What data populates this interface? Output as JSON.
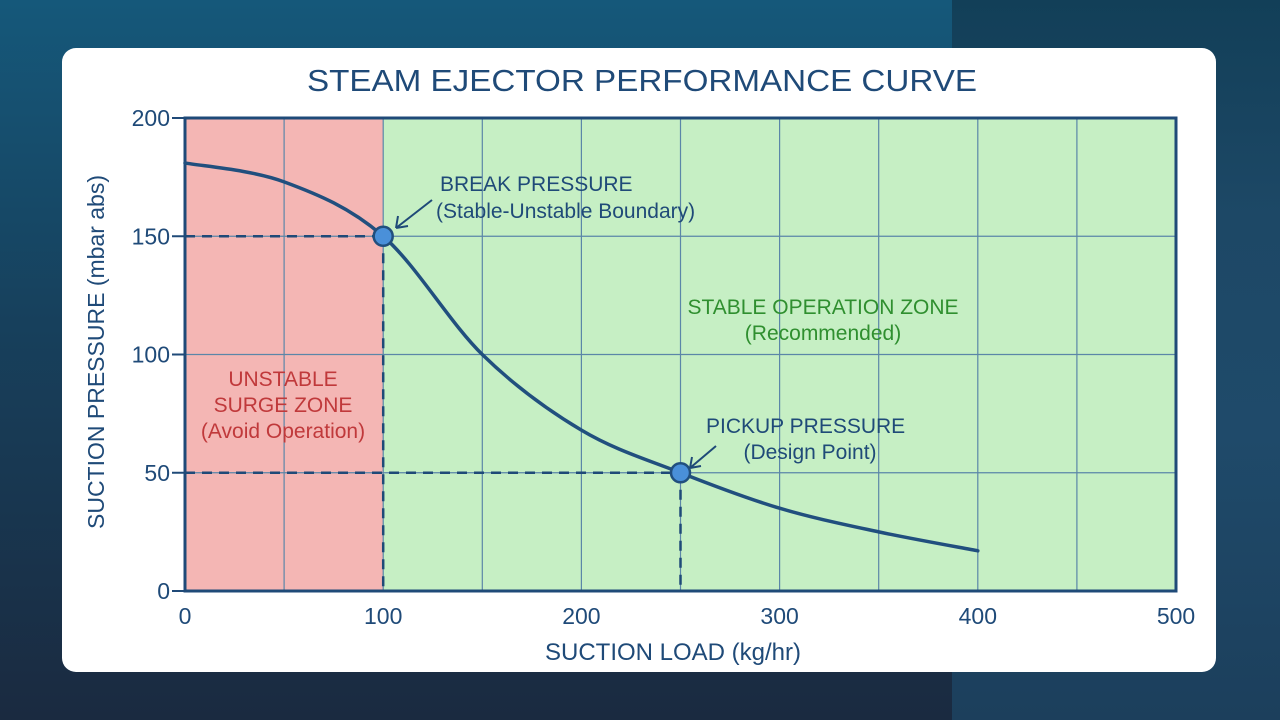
{
  "chart_data": {
    "type": "line",
    "title": "STEAM EJECTOR PERFORMANCE CURVE",
    "xlabel": "SUCTION LOAD (kg/hr)",
    "ylabel": "SUCTION PRESSURE (mbar abs)",
    "xlim": [
      0,
      500
    ],
    "ylim": [
      0,
      200
    ],
    "xticks": [
      0,
      100,
      200,
      300,
      400,
      500
    ],
    "yticks": [
      0,
      50,
      100,
      150,
      200
    ],
    "xtick_labels": [
      "0",
      "100",
      "200",
      "300",
      "400",
      "500"
    ],
    "ytick_labels": [
      "0",
      "50",
      "100",
      "150",
      "200"
    ],
    "grid": true,
    "grid_x_step": 50,
    "grid_y_step": 50,
    "series": [
      {
        "x": [
          0,
          50,
          100,
          150,
          200,
          250,
          300,
          350,
          400
        ],
        "y": [
          181,
          173,
          150,
          100,
          68,
          50,
          35,
          25,
          17
        ]
      }
    ],
    "zones": [
      {
        "label": [
          "UNSTABLE",
          "SURGE ZONE",
          "(Avoid Operation)"
        ],
        "x_range": [
          0,
          100
        ],
        "color": "#f4b6b4",
        "text_color": "#c0393b"
      },
      {
        "label": [
          "STABLE OPERATION ZONE",
          "(Recommended)"
        ],
        "x_range": [
          100,
          500
        ],
        "color": "#c6efc4",
        "text_color": "#2f8f2f"
      }
    ],
    "points": [
      {
        "label": "BREAK PRESSURE",
        "sublabel": "(Stable-Unstable Boundary)",
        "x": 100,
        "y": 150
      },
      {
        "label": "PICKUP PRESSURE",
        "sublabel": "(Design Point)",
        "x": 250,
        "y": 50
      }
    ],
    "colors": {
      "line": "#214f7e",
      "point": "#4a90d9",
      "grid": "#5b86a8",
      "text": "#1f4a78"
    }
  }
}
